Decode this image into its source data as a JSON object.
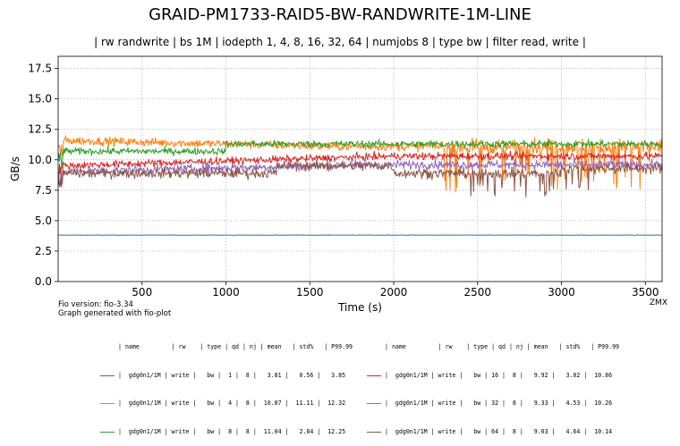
{
  "title": "GRAID-PM1733-RAID5-BW-RANDWRITE-1M-LINE",
  "subtitle": "| rw randwrite | bs 1M | iodepth 1, 4, 8, 16, 32, 64 | numjobs 8 | type bw | filter read, write |",
  "footer": {
    "fio_version": "Fio version: fio-3.34",
    "generated": "Graph generated with fio-plot",
    "corner": "ZMX"
  },
  "legend_header": "| name         | rw    | type | qd | nj | mean   | std%   | P99.99",
  "chart_data": {
    "type": "line",
    "title": "GRAID-PM1733-RAID5-BW-RANDWRITE-1M-LINE",
    "xlabel": "Time (s)",
    "ylabel": "GB/s",
    "xlim": [
      0,
      3600
    ],
    "ylim": [
      0,
      18.5
    ],
    "xticks": [
      500,
      1000,
      1500,
      2000,
      2500,
      3000,
      3500
    ],
    "yticks": [
      0.0,
      2.5,
      5.0,
      7.5,
      10.0,
      12.5,
      15.0,
      17.5
    ],
    "ytick_labels": [
      "0.0",
      "2.5",
      "5.0",
      "7.5",
      "10.0",
      "12.5",
      "15.0",
      "17.5"
    ],
    "grid": true,
    "legend_placement": "below",
    "series": [
      {
        "name": "gdg0n1/1M",
        "color": "#1f77b4",
        "rw": "write",
        "type": "bw",
        "qd": 1,
        "nj": 8,
        "mean": 3.81,
        "std_pct": 0.56,
        "p9999": 3.85,
        "legend_text": "|  gdg0n1/1M | write |   bw |  1 |  8 |   3.81 |   0.56 |   3.85"
      },
      {
        "name": "gdg0n1/1M",
        "color": "#ff7f0e",
        "rw": "write",
        "type": "bw",
        "qd": 4,
        "nj": 8,
        "mean": 10.87,
        "std_pct": 11.11,
        "p9999": 12.32,
        "legend_text": "|  gdg0n1/1M | write |   bw |  4 |  8 |  10.87 |  11.11 |  12.32"
      },
      {
        "name": "gdg0n1/1M",
        "color": "#2ca02c",
        "rw": "write",
        "type": "bw",
        "qd": 8,
        "nj": 8,
        "mean": 11.04,
        "std_pct": 2.84,
        "p9999": 12.25,
        "legend_text": "|  gdg0n1/1M | write |   bw |  8 |  8 |  11.04 |   2.84 |  12.25"
      },
      {
        "name": "gdg0n1/1M",
        "color": "#d62728",
        "rw": "write",
        "type": "bw",
        "qd": 16,
        "nj": 8,
        "mean": 9.92,
        "std_pct": 3.02,
        "p9999": 10.86,
        "legend_text": "|  gdg0n1/1M | write |   bw | 16 |  8 |   9.92 |   3.02 |  10.86"
      },
      {
        "name": "gdg0n1/1M",
        "color": "#9467bd",
        "rw": "write",
        "type": "bw",
        "qd": 32,
        "nj": 8,
        "mean": 9.33,
        "std_pct": 4.53,
        "p9999": 10.26,
        "legend_text": "|  gdg0n1/1M | write |   bw | 32 |  8 |   9.33 |   4.53 |  10.26"
      },
      {
        "name": "gdg0n1/1M",
        "color": "#8c564b",
        "rw": "write",
        "type": "bw",
        "qd": 64,
        "nj": 8,
        "mean": 9.03,
        "std_pct": 4.64,
        "p9999": 10.14,
        "legend_text": "|  gdg0n1/1M | write |   bw | 64 |  8 |   9.03 |   4.64 |  10.14"
      }
    ]
  }
}
